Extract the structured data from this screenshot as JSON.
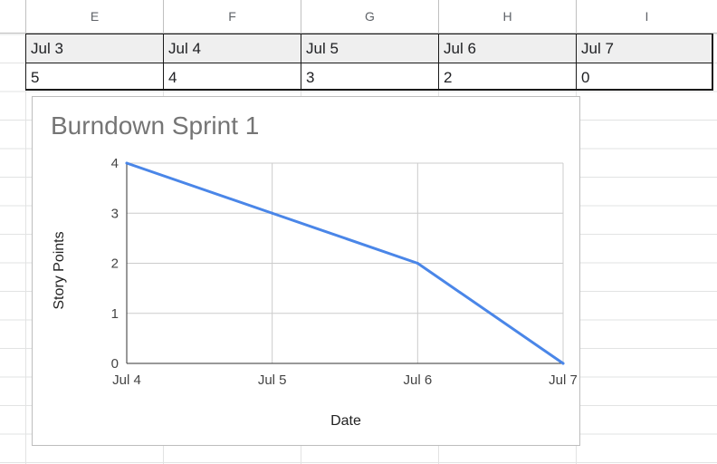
{
  "sheet": {
    "column_headers": [
      "E",
      "F",
      "G",
      "H",
      "I"
    ],
    "table": {
      "dates": [
        "Jul 3",
        "Jul 4",
        "Jul 5",
        "Jul 6",
        "Jul 7"
      ],
      "values": [
        "5",
        "4",
        "3",
        "2",
        "0"
      ]
    }
  },
  "chart": {
    "title": "Burndown Sprint 1",
    "xlabel": "Date",
    "ylabel": "Story Points",
    "line_color": "#4a86e8"
  },
  "chart_data": {
    "type": "line",
    "title": "Burndown Sprint 1",
    "xlabel": "Date",
    "ylabel": "Story Points",
    "categories": [
      "Jul 4",
      "Jul 5",
      "Jul 6",
      "Jul 7"
    ],
    "series": [
      {
        "values": [
          4,
          3,
          2,
          0
        ]
      }
    ],
    "ylim": [
      0,
      4
    ],
    "yticks": [
      "0",
      "1",
      "2",
      "3",
      "4"
    ],
    "grid": true,
    "legend": "none"
  }
}
